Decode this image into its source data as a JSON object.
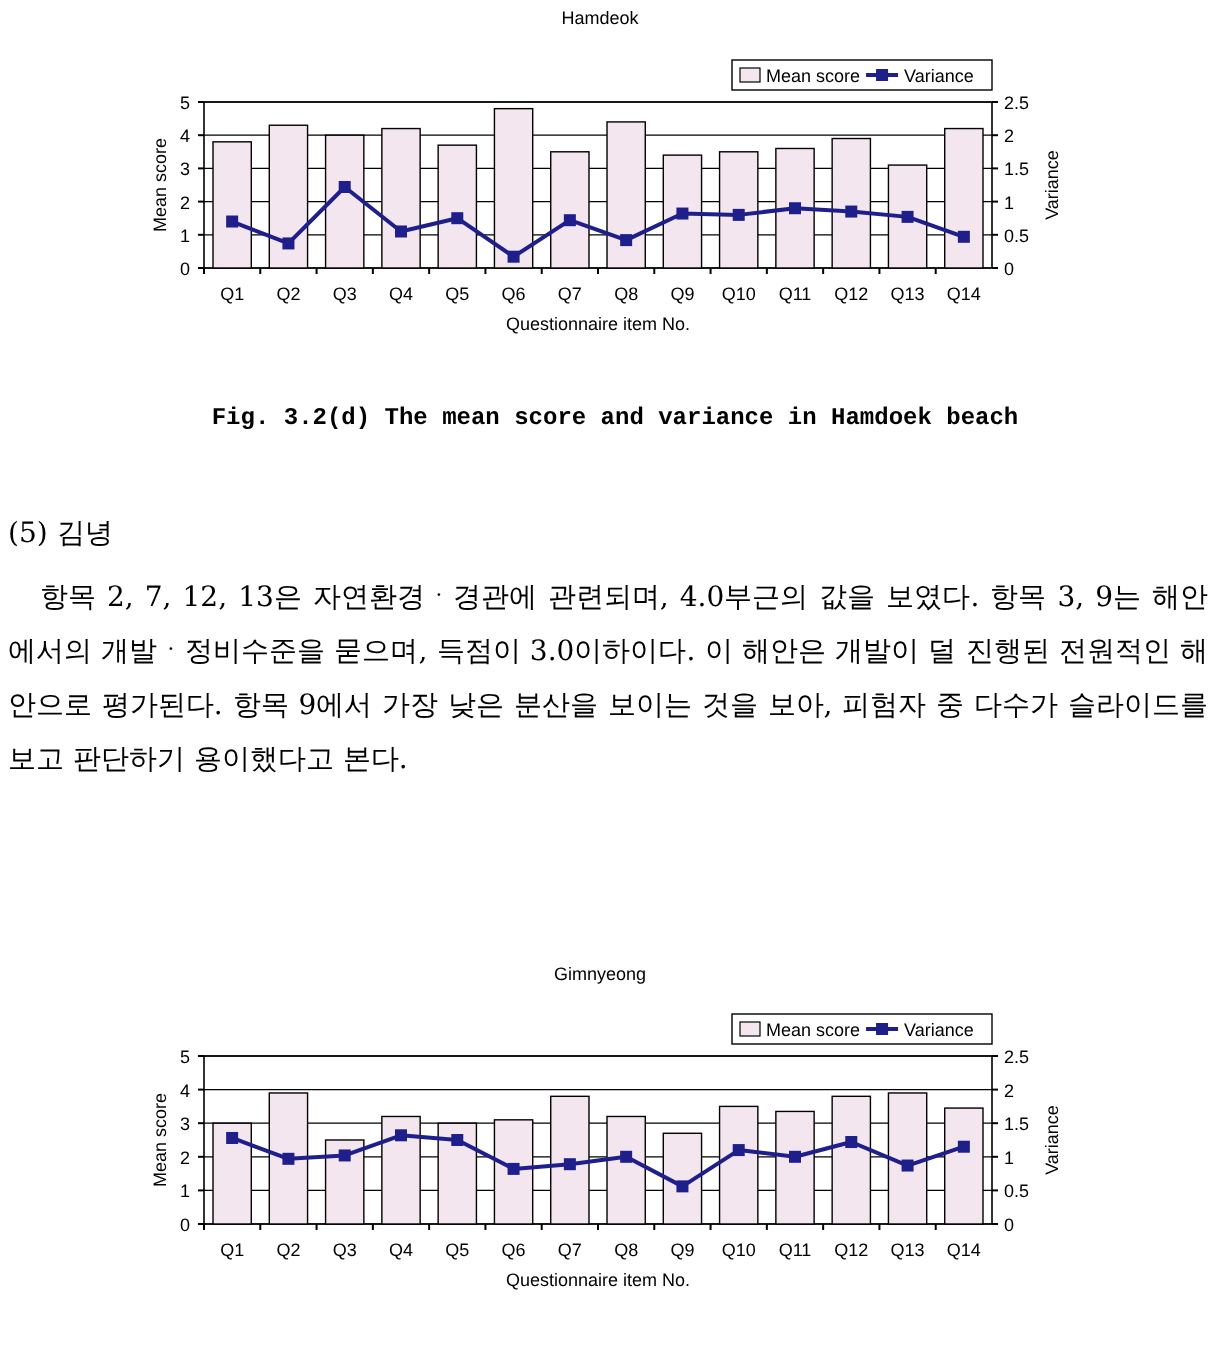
{
  "chart_data": [
    {
      "type": "bar",
      "title": "Hamdeok",
      "xlabel": "Questionnaire item No.",
      "ylabel": "Mean score",
      "y2label": "Variance",
      "categories": [
        "Q1",
        "Q2",
        "Q3",
        "Q4",
        "Q5",
        "Q6",
        "Q7",
        "Q8",
        "Q9",
        "Q10",
        "Q11",
        "Q12",
        "Q13",
        "Q14"
      ],
      "series": [
        {
          "name": "Mean score",
          "color": "#f3e6ee",
          "values": [
            3.8,
            4.3,
            4.0,
            4.2,
            3.7,
            4.8,
            3.5,
            4.4,
            3.4,
            3.5,
            3.6,
            3.9,
            3.1,
            4.2
          ]
        },
        {
          "name": "Variance",
          "type": "line",
          "axis": "y2",
          "color": "#1f1f8c",
          "marker": "square",
          "values": [
            0.7,
            0.37,
            1.22,
            0.55,
            0.75,
            0.17,
            0.72,
            0.42,
            0.82,
            0.8,
            0.9,
            0.85,
            0.77,
            0.47
          ]
        }
      ],
      "ylim": [
        0,
        5
      ],
      "yticks": [
        0,
        1,
        2,
        3,
        4,
        5
      ],
      "y2lim": [
        0,
        2.5
      ],
      "y2ticks": [
        0,
        0.5,
        1,
        1.5,
        2,
        2.5
      ],
      "grid": "y",
      "legend": "top right",
      "annotations": [
        "Fig. 3.2(d) The mean score and variance in Hamdoek beach"
      ]
    },
    {
      "type": "bar",
      "title": "Gimnyeong",
      "xlabel": "Questionnaire item No.",
      "ylabel": "Mean score",
      "y2label": "Variance",
      "categories": [
        "Q1",
        "Q2",
        "Q3",
        "Q4",
        "Q5",
        "Q6",
        "Q7",
        "Q8",
        "Q9",
        "Q10",
        "Q11",
        "Q12",
        "Q13",
        "Q14"
      ],
      "series": [
        {
          "name": "Mean score",
          "color": "#f3e6ee",
          "values": [
            3.0,
            3.9,
            2.5,
            3.2,
            3.0,
            3.1,
            3.8,
            3.2,
            2.7,
            3.5,
            3.35,
            3.8,
            3.9,
            3.45
          ]
        },
        {
          "name": "Variance",
          "type": "line",
          "axis": "y2",
          "color": "#1f1f8c",
          "marker": "square",
          "values": [
            1.28,
            0.97,
            1.02,
            1.32,
            1.25,
            0.82,
            0.89,
            1.0,
            0.56,
            1.1,
            1.0,
            1.22,
            0.87,
            1.15
          ]
        }
      ],
      "ylim": [
        0,
        5
      ],
      "yticks": [
        0,
        1,
        2,
        3,
        4,
        5
      ],
      "y2lim": [
        0,
        2.5
      ],
      "y2ticks": [
        0,
        0.5,
        1,
        1.5,
        2,
        2.5
      ],
      "grid": "y",
      "legend": "top right",
      "annotations": [
        "(5) 김녕",
        "항목 2, 7, 12, 13은 자연환경ㆍ경관에 관련되며, 4.0부근의 값을 보였다. 항목 3, 9는 해안에서의 개발ㆍ정비수준을 묻으며, 득점이 3.0이하이다. 이 해안은 개발이 덜 진행된 전원적인 해안으로 평가된다. 항목 9에서 가장 낮은 분산을 보이는 것을 보아, 피험자 중 다수가 슬라이드를 보고 판단하기 용이했다고 본다."
      ]
    }
  ]
}
